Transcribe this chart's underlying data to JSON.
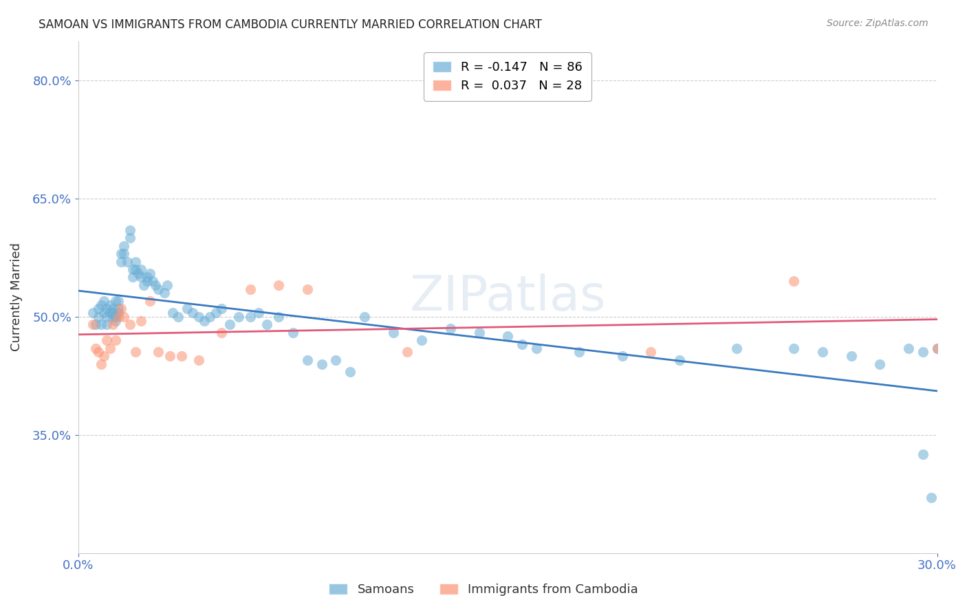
{
  "title": "SAMOAN VS IMMIGRANTS FROM CAMBODIA CURRENTLY MARRIED CORRELATION CHART",
  "source_text": "Source: ZipAtlas.com",
  "xlabel": "",
  "ylabel": "Currently Married",
  "xlim": [
    0.0,
    0.3
  ],
  "ylim": [
    0.2,
    0.85
  ],
  "yticks": [
    0.35,
    0.5,
    0.65,
    0.8
  ],
  "ytick_labels": [
    "35.0%",
    "50.0%",
    "65.0%",
    "80.0%"
  ],
  "xticks": [
    0.0,
    0.3
  ],
  "xtick_labels": [
    "0.0%",
    "30.0%"
  ],
  "background_color": "#ffffff",
  "grid_color": "#cccccc",
  "blue_color": "#6baed6",
  "pink_color": "#fc9272",
  "legend_R1": "R = -0.147",
  "legend_N1": "N = 86",
  "legend_R2": "R =  0.037",
  "legend_N2": "N = 28",
  "watermark": "ZIPatlas",
  "samoans_x": [
    0.005,
    0.006,
    0.007,
    0.007,
    0.008,
    0.008,
    0.009,
    0.009,
    0.01,
    0.01,
    0.01,
    0.011,
    0.011,
    0.012,
    0.012,
    0.012,
    0.013,
    0.013,
    0.013,
    0.014,
    0.014,
    0.014,
    0.015,
    0.015,
    0.016,
    0.016,
    0.017,
    0.018,
    0.018,
    0.019,
    0.019,
    0.02,
    0.02,
    0.021,
    0.022,
    0.022,
    0.023,
    0.024,
    0.024,
    0.025,
    0.026,
    0.027,
    0.028,
    0.03,
    0.031,
    0.033,
    0.035,
    0.038,
    0.04,
    0.042,
    0.044,
    0.046,
    0.048,
    0.05,
    0.053,
    0.056,
    0.06,
    0.063,
    0.066,
    0.07,
    0.075,
    0.08,
    0.085,
    0.09,
    0.095,
    0.1,
    0.11,
    0.12,
    0.13,
    0.14,
    0.15,
    0.155,
    0.16,
    0.175,
    0.19,
    0.21,
    0.23,
    0.25,
    0.26,
    0.27,
    0.28,
    0.29,
    0.295,
    0.295,
    0.298,
    0.3
  ],
  "samoans_y": [
    0.505,
    0.49,
    0.51,
    0.5,
    0.515,
    0.49,
    0.52,
    0.505,
    0.5,
    0.51,
    0.49,
    0.515,
    0.505,
    0.5,
    0.51,
    0.505,
    0.495,
    0.52,
    0.5,
    0.51,
    0.52,
    0.505,
    0.58,
    0.57,
    0.59,
    0.58,
    0.57,
    0.61,
    0.6,
    0.56,
    0.55,
    0.57,
    0.56,
    0.555,
    0.55,
    0.56,
    0.54,
    0.545,
    0.55,
    0.555,
    0.545,
    0.54,
    0.535,
    0.53,
    0.54,
    0.505,
    0.5,
    0.51,
    0.505,
    0.5,
    0.495,
    0.5,
    0.505,
    0.51,
    0.49,
    0.5,
    0.5,
    0.505,
    0.49,
    0.5,
    0.48,
    0.445,
    0.44,
    0.445,
    0.43,
    0.5,
    0.48,
    0.47,
    0.485,
    0.48,
    0.475,
    0.465,
    0.46,
    0.455,
    0.45,
    0.445,
    0.46,
    0.46,
    0.455,
    0.45,
    0.44,
    0.46,
    0.455,
    0.325,
    0.27,
    0.46
  ],
  "cambodia_x": [
    0.005,
    0.006,
    0.007,
    0.008,
    0.009,
    0.01,
    0.011,
    0.012,
    0.013,
    0.014,
    0.015,
    0.016,
    0.018,
    0.02,
    0.022,
    0.025,
    0.028,
    0.032,
    0.036,
    0.042,
    0.05,
    0.06,
    0.07,
    0.08,
    0.115,
    0.2,
    0.25,
    0.3
  ],
  "cambodia_y": [
    0.49,
    0.46,
    0.455,
    0.44,
    0.45,
    0.47,
    0.46,
    0.49,
    0.47,
    0.5,
    0.51,
    0.5,
    0.49,
    0.455,
    0.495,
    0.52,
    0.455,
    0.45,
    0.45,
    0.445,
    0.48,
    0.535,
    0.54,
    0.535,
    0.455,
    0.455,
    0.545,
    0.46
  ],
  "blue_line_color": "#3a7abf",
  "pink_line_color": "#e05a7a",
  "axis_color": "#4472c4",
  "tick_color": "#4472c4"
}
